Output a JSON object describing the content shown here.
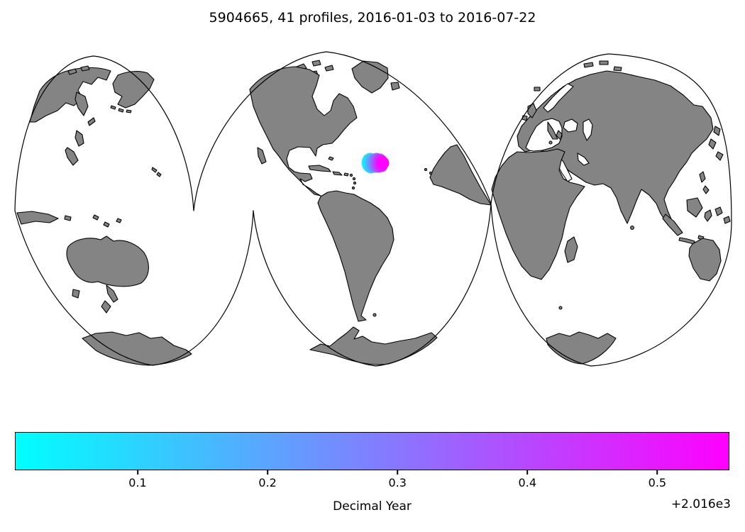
{
  "title": "5904665, 41 profiles, 2016-01-03 to 2016-07-22",
  "map": {
    "projection": "interrupted-three-lobe",
    "land_color": "#848484",
    "coastline_color": "#000000",
    "ocean_color": "#ffffff",
    "lobe_count": 3
  },
  "chart_data": {
    "type": "scatter",
    "title": "5904665, 41 profiles, 2016-01-03 to 2016-07-22",
    "float_id": "5904665",
    "profile_count": 41,
    "date_start": "2016-01-03",
    "date_end": "2016-07-22",
    "legend_position": "bottom colorbar",
    "colorbar": {
      "label": "Decimal Year",
      "offset_text": "+2.016e3",
      "ticks": [
        0.1,
        0.2,
        0.3,
        0.4,
        0.5
      ],
      "vmin": 0.0055,
      "vmax": 0.5555,
      "colormap": "cool",
      "color_start": "#00ffff",
      "color_end": "#ff00ff"
    },
    "marker_radius_px": 8.5,
    "profile_points": [
      [
        518.0,
        230,
        0.006
      ],
      [
        518.6,
        227,
        0.02
      ],
      [
        519.1,
        233,
        0.033
      ],
      [
        519.7,
        225,
        0.047
      ],
      [
        520.2,
        231,
        0.06
      ],
      [
        520.8,
        235,
        0.074
      ],
      [
        521.3,
        228,
        0.088
      ],
      [
        521.9,
        224,
        0.101
      ],
      [
        522.4,
        232,
        0.115
      ],
      [
        523.0,
        236,
        0.128
      ],
      [
        523.5,
        229,
        0.142
      ],
      [
        524.1,
        225,
        0.156
      ],
      [
        524.6,
        233,
        0.169
      ],
      [
        525.2,
        230,
        0.183
      ],
      [
        525.7,
        226,
        0.196
      ],
      [
        526.3,
        234,
        0.21
      ],
      [
        526.8,
        228,
        0.224
      ],
      [
        527.4,
        232,
        0.237
      ],
      [
        527.9,
        225,
        0.251
      ],
      [
        528.5,
        230,
        0.264
      ],
      [
        529.0,
        235,
        0.278
      ],
      [
        529.6,
        227,
        0.292
      ],
      [
        530.1,
        231,
        0.305
      ],
      [
        530.7,
        224,
        0.319
      ],
      [
        531.2,
        233,
        0.332
      ],
      [
        531.8,
        229,
        0.346
      ],
      [
        532.3,
        226,
        0.36
      ],
      [
        532.9,
        232,
        0.373
      ],
      [
        533.4,
        235,
        0.387
      ],
      [
        534.0,
        228,
        0.4
      ],
      [
        534.5,
        231,
        0.414
      ],
      [
        535.1,
        225,
        0.428
      ],
      [
        535.6,
        233,
        0.441
      ],
      [
        536.2,
        229,
        0.455
      ],
      [
        536.7,
        226,
        0.468
      ],
      [
        537.3,
        231,
        0.482
      ],
      [
        537.8,
        234,
        0.496
      ],
      [
        538.4,
        228,
        0.509
      ],
      [
        538.9,
        231,
        0.523
      ],
      [
        539.5,
        229,
        0.536
      ],
      [
        540.0,
        230,
        0.55
      ]
    ]
  }
}
